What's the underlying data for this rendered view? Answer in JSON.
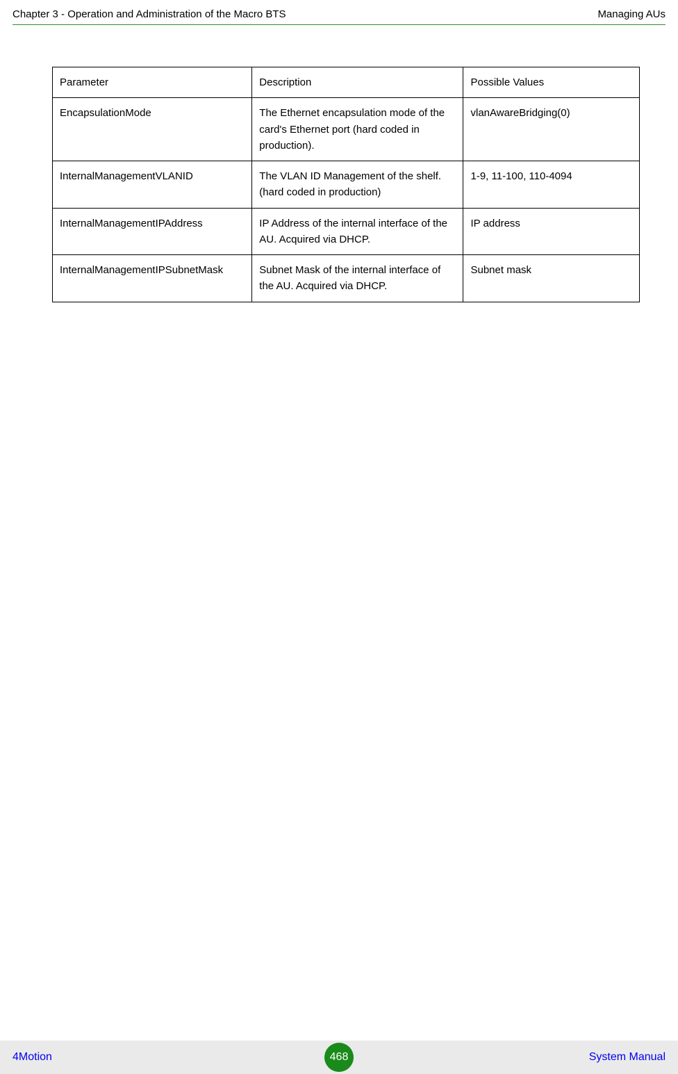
{
  "header": {
    "left": "Chapter 3 - Operation and Administration of the Macro BTS",
    "right": "Managing AUs"
  },
  "table": {
    "columns": [
      "Parameter",
      "Description",
      "Possible Values"
    ],
    "rows": [
      {
        "parameter": "EncapsulationMode",
        "description": "The Ethernet encapsulation mode of the card's Ethernet port (hard coded in production).",
        "values": "vlanAwareBridging(0)"
      },
      {
        "parameter": "InternalManagementVLANID",
        "description": "The VLAN ID Management of the shelf.(hard coded in production)",
        "values": "1-9, 11-100, 110-4094"
      },
      {
        "parameter": "InternalManagementIPAddress",
        "description": "IP Address of the internal interface of the AU. Acquired via DHCP.",
        "values": "IP address"
      },
      {
        "parameter": "InternalManagementIPSubnetMask",
        "description": "Subnet Mask of the internal interface of the AU. Acquired via DHCP.",
        "values": "Subnet mask"
      }
    ],
    "styling": {
      "border_color": "#000000",
      "border_width": 1,
      "cell_padding": 10,
      "font_size": 15,
      "line_height": 1.55,
      "column_widths_pct": [
        34,
        36,
        30
      ]
    }
  },
  "footer": {
    "left": "4Motion",
    "page_number": "468",
    "right": "System Manual",
    "background_color": "#eaeaea",
    "link_color": "#0000ee",
    "badge_color": "#1a8a1a",
    "badge_text_color": "#ffffff"
  },
  "colors": {
    "header_rule": "#2e8b2e",
    "text": "#000000",
    "background": "#ffffff"
  }
}
